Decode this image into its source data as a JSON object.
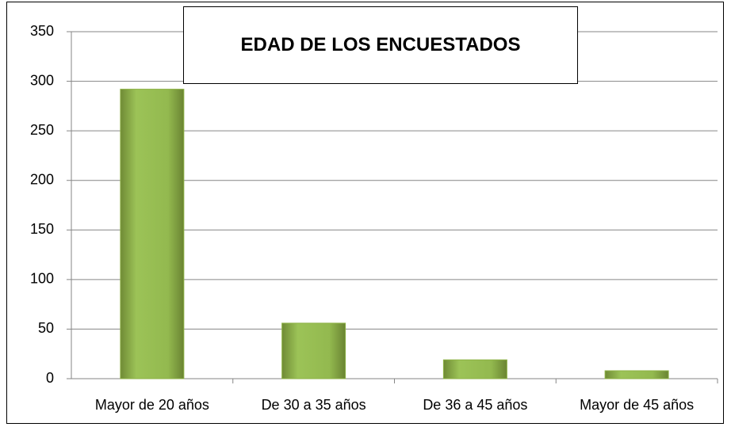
{
  "chart_data": {
    "type": "bar",
    "title": "EDAD DE LOS ENCUESTADOS",
    "categories": [
      "Mayor de 20 años",
      "De 30 a 35 años",
      "De 36 a 45 años",
      "Mayor de 45 años"
    ],
    "values": [
      292,
      56,
      19,
      8
    ],
    "color": "#8db245",
    "ylim": [
      0,
      350
    ],
    "yticks": [
      0,
      50,
      100,
      150,
      200,
      250,
      300,
      350
    ],
    "grid": true
  }
}
